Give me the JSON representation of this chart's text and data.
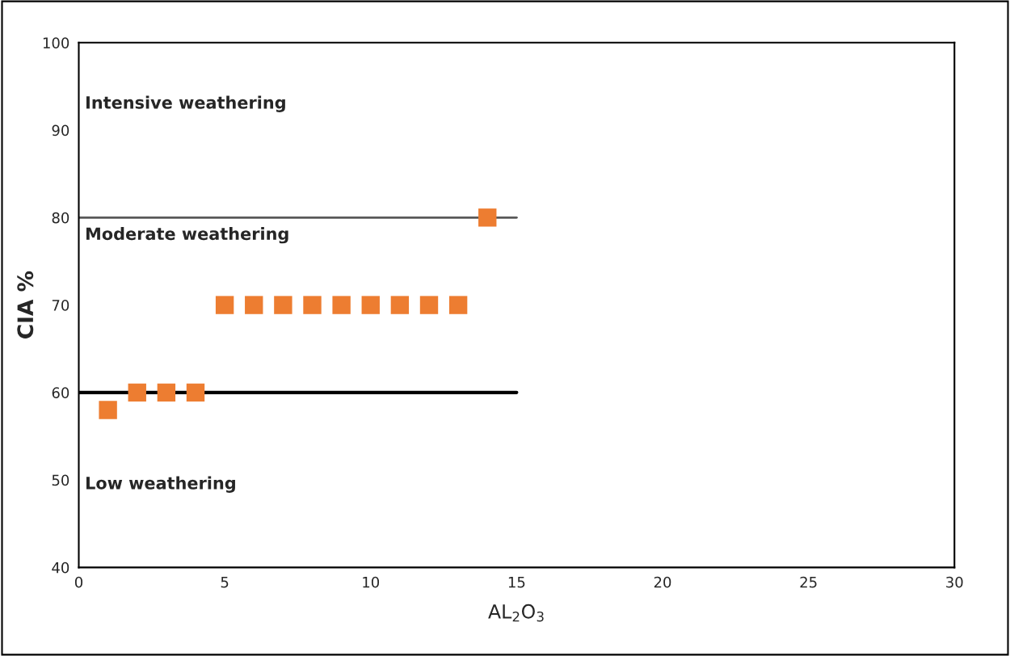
{
  "chart_data": {
    "type": "scatter",
    "xlabel": "AL$_{2}$O$_{3}$",
    "ylabel": "CIA %",
    "xlim": [
      0,
      30
    ],
    "xticks": [
      0,
      5,
      10,
      15,
      20,
      25,
      30
    ],
    "ylim": [
      40,
      100
    ],
    "yticks": [
      40,
      50,
      60,
      70,
      80,
      90,
      100
    ],
    "grid": false,
    "legend": false,
    "series": [
      {
        "type": "line",
        "marker": "none",
        "color": "#595959",
        "x": [
          0,
          15
        ],
        "values": [
          80,
          80
        ]
      },
      {
        "type": "line",
        "marker": "none",
        "color": "#000000",
        "x": [
          0,
          15
        ],
        "values": [
          60,
          60
        ]
      },
      {
        "marker": "square",
        "color": "#ed7d31",
        "x": [
          1,
          2,
          3,
          4,
          5,
          6,
          7,
          8,
          9,
          10,
          11,
          12,
          13,
          14
        ],
        "values": [
          58,
          60,
          60,
          60,
          70,
          70,
          70,
          70,
          70,
          70,
          70,
          70,
          70,
          80
        ]
      }
    ],
    "annotations": [
      "Intensive weathering",
      "Moderate weathering",
      "Low weathering"
    ]
  }
}
